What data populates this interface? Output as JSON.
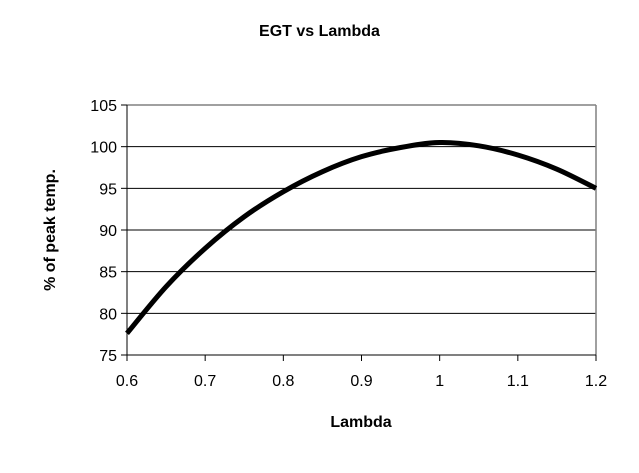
{
  "chart_data": {
    "type": "line",
    "title": "EGT vs Lambda",
    "xlabel": "Lambda",
    "ylabel": "% of peak temp.",
    "xlim": [
      0.6,
      1.2
    ],
    "ylim": [
      75,
      105
    ],
    "x_ticks": [
      "0.6",
      "0.7",
      "0.8",
      "0.9",
      "1",
      "1.1",
      "1.2"
    ],
    "y_ticks": [
      "75",
      "80",
      "85",
      "90",
      "95",
      "100",
      "105"
    ],
    "grid": {
      "horizontal": true,
      "vertical": false
    },
    "legend": null,
    "series": [
      {
        "name": "EGT",
        "color": "#000000",
        "x": [
          0.6,
          0.65,
          0.7,
          0.75,
          0.8,
          0.85,
          0.9,
          0.95,
          1.0,
          1.05,
          1.1,
          1.15,
          1.2
        ],
        "values": [
          77.6,
          83.2,
          87.8,
          91.6,
          94.6,
          97.0,
          98.8,
          99.9,
          100.5,
          100.1,
          99.0,
          97.3,
          95.0
        ]
      }
    ]
  },
  "colors": {
    "background": "#ffffff",
    "plot_border": "#808080",
    "gridline": "#000000",
    "line": "#000000"
  }
}
